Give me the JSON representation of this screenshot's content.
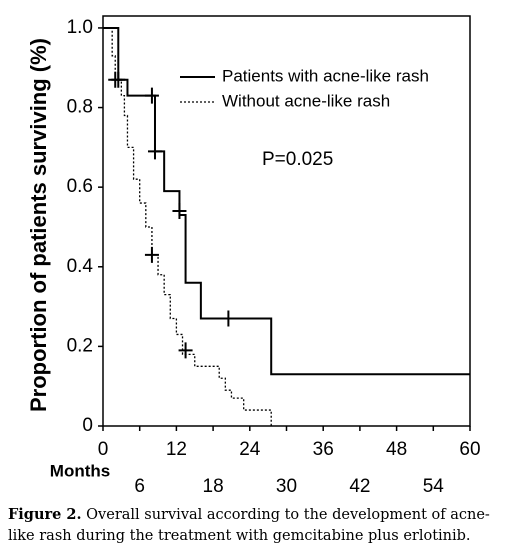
{
  "chart_data": {
    "type": "step",
    "ylabel": "Proportion of patients surviving (%)",
    "xlabel": "Months",
    "annotation": "P=0.025",
    "xlim": [
      0,
      60
    ],
    "ylim": [
      0,
      1.03
    ],
    "xticks": [
      0,
      6,
      12,
      18,
      24,
      30,
      36,
      42,
      48,
      54,
      60
    ],
    "yticks": [
      0,
      0.2,
      0.4,
      0.6,
      0.8,
      {
        "value": 1,
        "label": "1.0"
      }
    ],
    "series": [
      {
        "name": "Patients with acne-like rash",
        "color": "#000000",
        "dash": "solid",
        "x": [
          0,
          2.5,
          4,
          8.5,
          10,
          12.5,
          13.5,
          16,
          27.5,
          60
        ],
        "values": [
          1,
          0.87,
          0.83,
          0.69,
          0.59,
          0.53,
          0.36,
          0.27,
          0.13,
          0.13
        ],
        "censored_x": [
          2.5,
          8,
          8.5,
          12.5,
          20.5
        ],
        "censored_values": [
          0.87,
          0.83,
          0.69,
          0.54,
          0.27
        ]
      },
      {
        "name": "Without acne-like rash",
        "color": "#000000",
        "dash": "dotted",
        "x": [
          0,
          1.5,
          2,
          3,
          3.5,
          4,
          5,
          6,
          7,
          8,
          9,
          10,
          11,
          12,
          13,
          15,
          19,
          20,
          21,
          23,
          26,
          27.5
        ],
        "values": [
          1,
          0.93,
          0.87,
          0.83,
          0.78,
          0.7,
          0.62,
          0.56,
          0.5,
          0.43,
          0.38,
          0.33,
          0.27,
          0.23,
          0.18,
          0.15,
          0.12,
          0.09,
          0.07,
          0.04,
          0.04,
          0
        ],
        "censored_x": [
          2,
          8,
          13.5
        ],
        "censored_values": [
          0.87,
          0.43,
          0.19
        ]
      }
    ]
  },
  "caption": {
    "label": "Figure 2.",
    "text": "Overall survival according to the development of acne-like rash during the treatment with gemcitabine plus erlotinib."
  }
}
